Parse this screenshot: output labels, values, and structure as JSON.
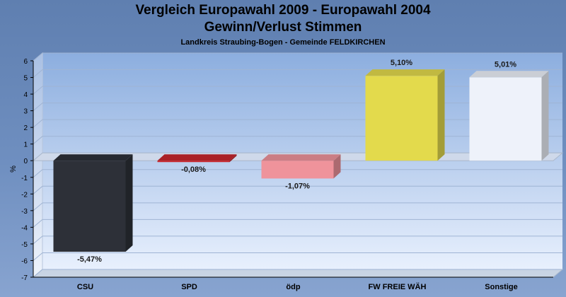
{
  "header": {
    "title": "Vergleich Europawahl 2009 - Europawahl 2004",
    "subtitle": "Gewinn/Verlust Stimmen",
    "region": "Landkreis Straubing-Bogen - Gemeinde FELDKIRCHEN"
  },
  "chart_data": {
    "type": "bar",
    "title": "Vergleich Europawahl 2009 - Europawahl 2004",
    "subtitle": "Gewinn/Verlust Stimmen",
    "caption": "Landkreis Straubing-Bogen - Gemeinde FELDKIRCHEN",
    "xlabel": "",
    "ylabel": "%",
    "ylim": [
      -7,
      6
    ],
    "yticks": [
      6,
      5,
      4,
      3,
      2,
      1,
      0,
      -1,
      -2,
      -3,
      -4,
      -5,
      -6,
      -7
    ],
    "grid": true,
    "legend": "none",
    "categories": [
      "CSU",
      "SPD",
      "ödp",
      "FW FREIE WÄH",
      "Sonstige"
    ],
    "values": [
      -5.47,
      -0.08,
      -1.07,
      5.1,
      5.01
    ],
    "value_labels": [
      "-5,47%",
      "-0,08%",
      "-1,07%",
      "5,10%",
      "5,01%"
    ],
    "colors": [
      "#2d3038",
      "#c8262d",
      "#ef939b",
      "#e3da4c",
      "#eef2fa"
    ]
  }
}
